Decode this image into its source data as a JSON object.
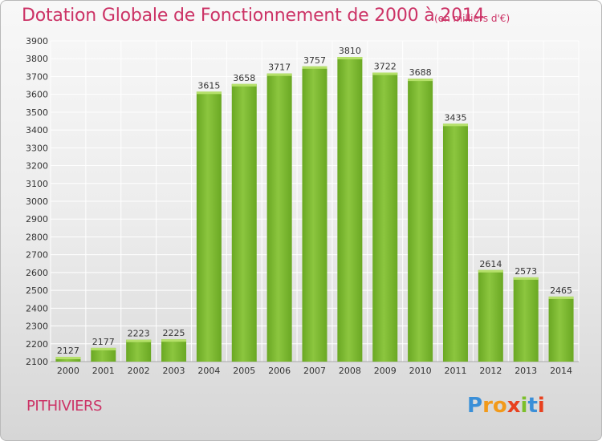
{
  "chart_data": {
    "type": "bar",
    "title": "Dotation Globale de Fonctionnement de 2000 à 2014",
    "subtitle": "(en milliers d'€)",
    "categories": [
      "2000",
      "2001",
      "2002",
      "2003",
      "2004",
      "2005",
      "2006",
      "2007",
      "2008",
      "2009",
      "2010",
      "2011",
      "2012",
      "2013",
      "2014"
    ],
    "values": [
      2127,
      2177,
      2223,
      2225,
      3615,
      3658,
      3717,
      3757,
      3810,
      3722,
      3688,
      3435,
      2614,
      2573,
      2465
    ],
    "ylim": [
      2100,
      3900
    ],
    "yticks": [
      2100,
      2200,
      2300,
      2400,
      2500,
      2600,
      2700,
      2800,
      2900,
      3000,
      3100,
      3200,
      3300,
      3400,
      3500,
      3600,
      3700,
      3800,
      3900
    ],
    "grid": true,
    "bar_color": "#7ab52e",
    "bar_highlight": "#a6d65a"
  },
  "footer": {
    "city": "PITHIVIERS",
    "logo": {
      "letters": [
        "P",
        "r",
        "o",
        "x",
        "i",
        "t",
        "i"
      ],
      "colors": [
        "#3a8fd8",
        "#f29a1a",
        "#f29a1a",
        "#e8411f",
        "#7cbf2a",
        "#3a8fd8",
        "#e8411f"
      ]
    }
  }
}
